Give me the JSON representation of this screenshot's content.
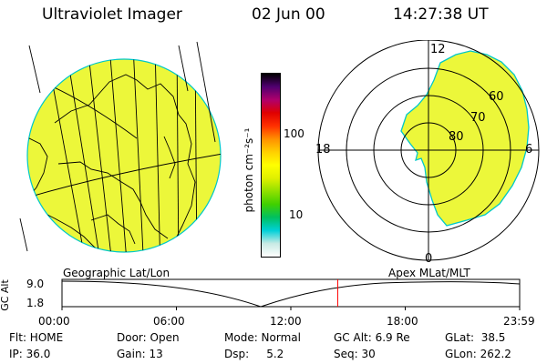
{
  "header": {
    "instrument": "Ultraviolet Imager",
    "date": "02 Jun 00",
    "time": "14:27:38 UT"
  },
  "colorbar": {
    "unit_label": "photon cm⁻²s⁻¹",
    "ticks": [
      {
        "label": "100",
        "value": 100
      },
      {
        "label": "10",
        "value": 10
      }
    ],
    "range": [
      2.5,
      600
    ],
    "scale": "log",
    "colors_bottom_to_top": [
      "#ffffff",
      "#c8eae4",
      "#00d0d8",
      "#00c060",
      "#40d000",
      "#90e000",
      "#e0f000",
      "#ffff00",
      "#ffd000",
      "#ff9000",
      "#ff3000",
      "#e00000",
      "#b0006c",
      "#500070",
      "#000000"
    ]
  },
  "geo_map": {
    "label": "Geographic Lat/Lon",
    "fill_color": "#ecf73a"
  },
  "polar_map": {
    "label": "Apex MLat/MLT",
    "mlt_labels": {
      "top": "12",
      "left": "18",
      "right": "6",
      "bottom": "0"
    },
    "lat_rings": [
      "60",
      "70",
      "80"
    ],
    "fill_color": "#ecf73a"
  },
  "orbit_plot": {
    "ylabel": "GC Alt",
    "y_ticks": [
      "9.0",
      "1.8"
    ],
    "x_ticks": [
      "00:00",
      "06:00",
      "12:00",
      "18:00",
      "23:59"
    ],
    "current_time_marker_hours": 14.46,
    "marker_color": "#ff0000"
  },
  "status": {
    "flt": "Flt: HOME",
    "door": "Door: Open",
    "mode": "Mode: Normal",
    "gc_alt": "GC Alt: 6.9 Re",
    "glat": "GLat:  38.5",
    "ip": "IP: 36.0",
    "gain": "Gain: 13",
    "dsp": "Dsp:     5.2",
    "seq": "Seq: 30",
    "glon": "GLon: 262.2"
  }
}
